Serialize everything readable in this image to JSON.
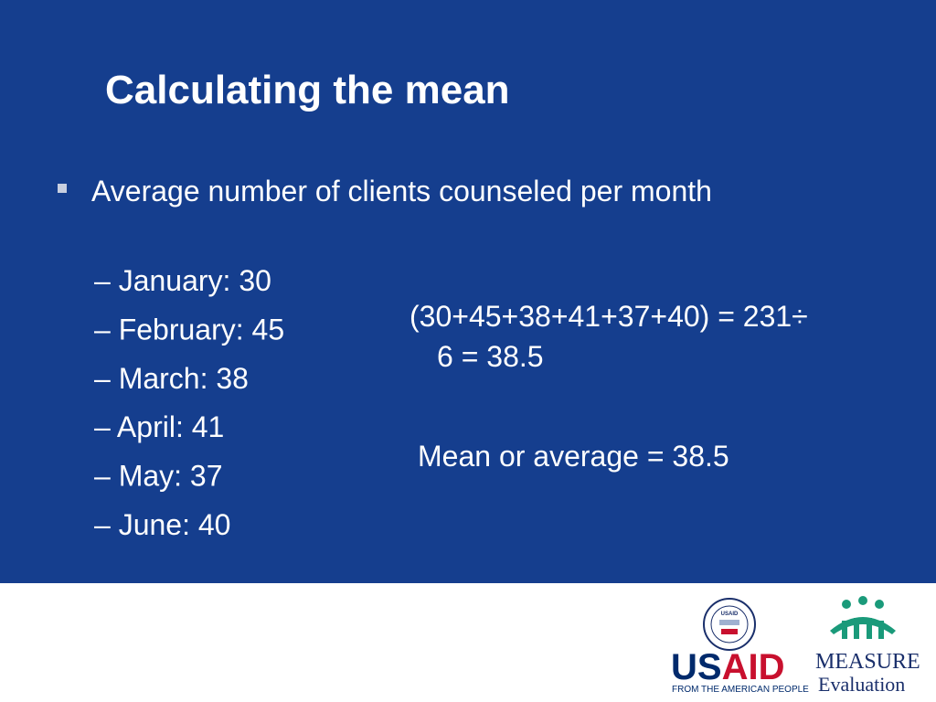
{
  "slide": {
    "title": "Calculating the mean",
    "bullet": "Average number of clients counseled per month",
    "items": [
      "– January: 30",
      "– February: 45",
      "– March: 38",
      "– April: 41",
      "– May: 37",
      "– June: 40"
    ],
    "formula": [
      "(30+45+38+41+37+40) = 231÷",
      "6 = 38.5"
    ],
    "result": "Mean or average = 38.5"
  },
  "footer": {
    "usaid": {
      "seal": "USAID",
      "us": "US",
      "aid": "AID",
      "tagline": "FROM THE AMERICAN PEOPLE"
    },
    "measure": {
      "name": "MEASURE",
      "sub": "Evaluation"
    }
  }
}
